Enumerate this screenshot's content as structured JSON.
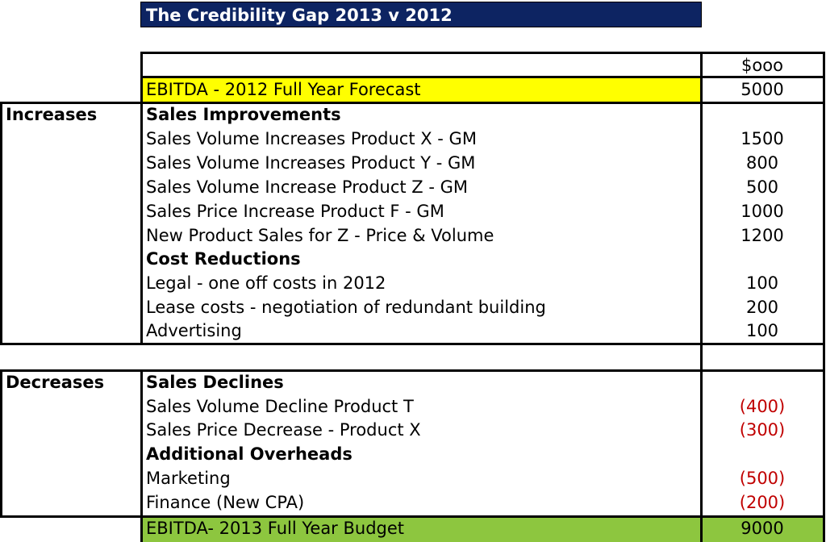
{
  "title": "The Credibility Gap 2013 v 2012",
  "unit_header": "$ooo",
  "start_row": {
    "label": "EBITDA - 2012 Full Year Forecast",
    "value": "5000",
    "highlight": "#ffff00"
  },
  "increases": {
    "label": "Increases",
    "sections": [
      {
        "heading": "Sales Improvements",
        "items": [
          {
            "label": "Sales Volume Increases Product X - GM",
            "value": "1500"
          },
          {
            "label": "Sales Volume  Increases Product  Y - GM",
            "value": "800"
          },
          {
            "label": "Sales Volume Increase Product Z - GM",
            "value": "500"
          },
          {
            "label": "Sales Price Increase Product F - GM",
            "value": "1000"
          },
          {
            "label": "New Product Sales for Z - Price & Volume",
            "value": "1200"
          }
        ]
      },
      {
        "heading": "Cost Reductions",
        "items": [
          {
            "label": "Legal - one off costs in 2012",
            "value": "100"
          },
          {
            "label": "Lease costs - negotiation of redundant building",
            "value": "200"
          },
          {
            "label": "Advertising",
            "value": "100"
          }
        ]
      }
    ]
  },
  "decreases": {
    "label": "Decreases",
    "sections": [
      {
        "heading": "Sales Declines",
        "items": [
          {
            "label": "Sales Volume Decline Product T",
            "value": "(400)"
          },
          {
            "label": "Sales Price Decrease - Product X",
            "value": "(300)"
          }
        ]
      },
      {
        "heading": "Additional Overheads",
        "items": [
          {
            "label": "Marketing",
            "value": "(500)"
          },
          {
            "label": "Finance (New CPA)",
            "value": "(200)"
          }
        ]
      }
    ]
  },
  "end_row": {
    "label": "EBITDA- 2013 Full Year Budget",
    "value": "9000",
    "highlight": "#8dc63f"
  },
  "colors": {
    "title_bg": "#0d2462",
    "negative": "#c00000"
  }
}
